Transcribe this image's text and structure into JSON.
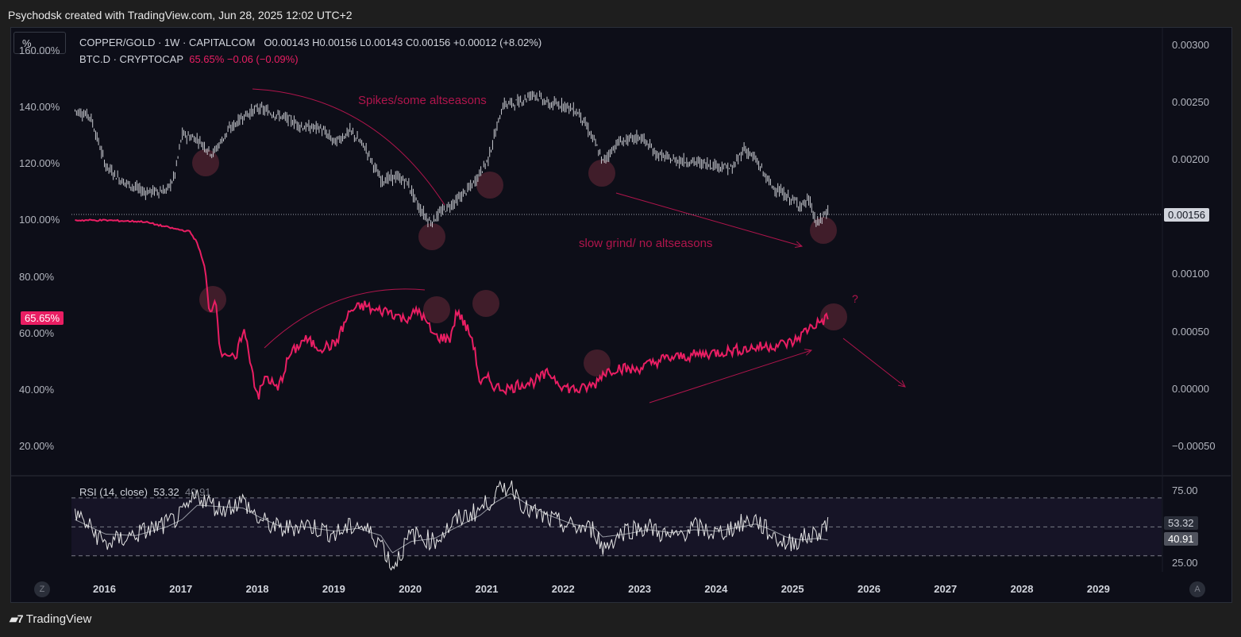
{
  "header": {
    "attribution": "Psychodsk created with TradingView.com, Jun 28, 2025 12:02 UTC+2"
  },
  "scale_button": {
    "label": "%"
  },
  "legend": {
    "main_symbol": "COPPER/GOLD · 1W · CAPITALCOM",
    "main_ohlc": "O0.00143  H0.00156  L0.00143  C0.00156  +0.00012 (+8.02%)",
    "overlay_symbol": "BTC.D · CRYPTOCAP",
    "overlay_values": "65.65%  −0.06 (−0.09%)",
    "rsi_label": "RSI (14, close)",
    "rsi_value": "53.32",
    "rsi_ma_value": "40.91"
  },
  "badges": {
    "btc_d_last": "65.65%",
    "copper_gold_last": "0.00156",
    "rsi_last": "53.32",
    "rsi_ma_last": "40.91"
  },
  "annotations": {
    "spikes": "Spikes/some altseasons",
    "slow_grind": "slow grind/  no altseasons",
    "question": "?"
  },
  "footer": {
    "brand": "TradingView"
  },
  "buttons": {
    "left_round": "Z",
    "right_round": "A"
  },
  "colors": {
    "btc_d": "#e91e63",
    "copper_gold": "#d1d4dc",
    "annotation": "#b0154c",
    "background": "#0d0e18"
  },
  "chart_data": [
    {
      "type": "line",
      "name": "BTC.D · CRYPTOCAP",
      "axis": "left",
      "y_tick_labels": [
        "160.00%",
        "140.00%",
        "120.00%",
        "100.00%",
        "80.00%",
        "60.00%",
        "40.00%",
        "20.00%"
      ],
      "ylim": [
        10,
        168
      ],
      "x": [
        2015.6,
        2016.0,
        2016.5,
        2016.9,
        2017.1,
        2017.2,
        2017.3,
        2017.35,
        2017.45,
        2017.5,
        2017.55,
        2017.7,
        2017.8,
        2017.9,
        2017.95,
        2018.0,
        2018.1,
        2018.25,
        2018.4,
        2018.6,
        2018.8,
        2019.0,
        2019.2,
        2019.4,
        2019.5,
        2019.7,
        2019.9,
        2020.1,
        2020.3,
        2020.5,
        2020.6,
        2020.8,
        2020.9,
        2021.0,
        2021.1,
        2021.3,
        2021.4,
        2021.6,
        2021.8,
        2022.0,
        2022.2,
        2022.4,
        2022.5,
        2022.7,
        2022.9,
        2023.1,
        2023.3,
        2023.6,
        2023.9,
        2024.2,
        2024.5,
        2024.8,
        2025.0,
        2025.2,
        2025.45
      ],
      "values": [
        100,
        100,
        99.5,
        97,
        96,
        92,
        83,
        68,
        72,
        52,
        54,
        50,
        62,
        50,
        42,
        38,
        45,
        40,
        52,
        58,
        55,
        56,
        68,
        70,
        68,
        68,
        65,
        68,
        59,
        58,
        68,
        58,
        42,
        44,
        41,
        40.5,
        42,
        43,
        46,
        41,
        40,
        42,
        46,
        48,
        47,
        49,
        51,
        52,
        53,
        54,
        55,
        56,
        57,
        62,
        65.65
      ]
    },
    {
      "type": "line",
      "name": "COPPER/GOLD · 1W · CAPITALCOM",
      "axis": "right",
      "y_tick_labels": [
        "0.00300",
        "0.00250",
        "0.00200",
        "0.00150",
        "0.00100",
        "0.00050",
        "0.00000",
        "−0.00050"
      ],
      "ylim": [
        -0.00075,
        0.00315
      ],
      "x": [
        2015.6,
        2015.8,
        2016.0,
        2016.2,
        2016.5,
        2016.8,
        2016.9,
        2017.0,
        2017.2,
        2017.4,
        2017.6,
        2017.8,
        2018.0,
        2018.2,
        2018.4,
        2018.6,
        2018.8,
        2019.0,
        2019.2,
        2019.4,
        2019.6,
        2019.8,
        2019.95,
        2020.1,
        2020.25,
        2020.4,
        2020.6,
        2020.8,
        2021.0,
        2021.2,
        2021.4,
        2021.6,
        2021.8,
        2022.0,
        2022.2,
        2022.4,
        2022.5,
        2022.7,
        2023.0,
        2023.2,
        2023.4,
        2023.7,
        2024.0,
        2024.2,
        2024.35,
        2024.5,
        2024.7,
        2024.9,
        2025.1,
        2025.2,
        2025.3,
        2025.45
      ],
      "values": [
        0.00243,
        0.00238,
        0.00195,
        0.00182,
        0.00172,
        0.00173,
        0.00185,
        0.00222,
        0.00218,
        0.00205,
        0.00225,
        0.00238,
        0.00245,
        0.0024,
        0.00235,
        0.00228,
        0.00228,
        0.00215,
        0.00225,
        0.0021,
        0.00182,
        0.00185,
        0.0018,
        0.00158,
        0.00145,
        0.00155,
        0.00165,
        0.00178,
        0.002,
        0.00248,
        0.0025,
        0.00258,
        0.00248,
        0.00248,
        0.0024,
        0.00215,
        0.00198,
        0.00215,
        0.0022,
        0.00205,
        0.002,
        0.00198,
        0.00195,
        0.00192,
        0.0021,
        0.002,
        0.00178,
        0.00168,
        0.0016,
        0.00165,
        0.00143,
        0.00156
      ]
    },
    {
      "type": "line",
      "name": "RSI (14, close)",
      "y_tick_labels": [
        "75.00",
        "25.00"
      ],
      "ylim": [
        20,
        82
      ],
      "x": [
        2015.6,
        2016.0,
        2016.4,
        2016.8,
        2017.0,
        2017.2,
        2017.5,
        2017.8,
        2018.0,
        2018.3,
        2018.6,
        2019.0,
        2019.3,
        2019.6,
        2019.75,
        2020.0,
        2020.3,
        2020.6,
        2020.9,
        2021.1,
        2021.3,
        2021.5,
        2021.8,
        2022.1,
        2022.4,
        2022.5,
        2022.8,
        2023.1,
        2023.4,
        2023.7,
        2024.0,
        2024.3,
        2024.5,
        2024.7,
        2024.9,
        2025.1,
        2025.3,
        2025.45
      ],
      "values": [
        60,
        38,
        45,
        52,
        58,
        72,
        62,
        68,
        55,
        48,
        52,
        45,
        52,
        40,
        22,
        45,
        40,
        55,
        62,
        72,
        80,
        62,
        55,
        50,
        48,
        35,
        48,
        50,
        42,
        50,
        45,
        52,
        55,
        45,
        38,
        42,
        45,
        53.32
      ],
      "ma_values": [
        55,
        45,
        44,
        50,
        55,
        65,
        64,
        63,
        57,
        50,
        50,
        47,
        49,
        44,
        32,
        40,
        42,
        50,
        58,
        67,
        73,
        66,
        58,
        52,
        49,
        43,
        45,
        48,
        46,
        48,
        47,
        50,
        52,
        48,
        43,
        41,
        42,
        40.91
      ],
      "bands": [
        70,
        50,
        30
      ]
    }
  ],
  "x_axis": {
    "labels": [
      "2016",
      "2017",
      "2018",
      "2019",
      "2020",
      "2021",
      "2022",
      "2023",
      "2024",
      "2025",
      "2026",
      "2027",
      "2028",
      "2029"
    ]
  }
}
